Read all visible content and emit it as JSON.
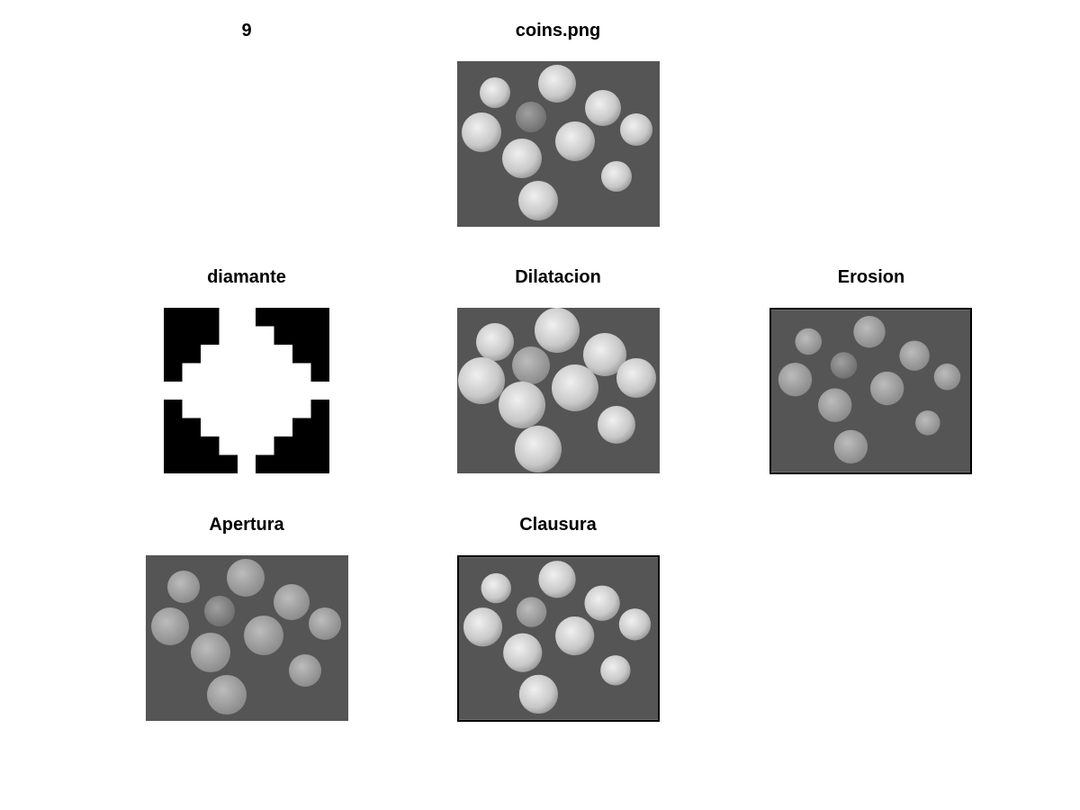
{
  "figure": {
    "number_label": "9",
    "titles": {
      "original": "coins.png",
      "structuring_element": "diamante",
      "dilation": "Dilatacion",
      "erosion": "Erosion",
      "opening": "Apertura",
      "closing": "Clausura"
    }
  },
  "colors": {
    "background_panel": "#5a5a5a",
    "coin_light": "#d8d8d8",
    "coin_dark": "#8c8c8c",
    "structuring_fg": "#ffffff",
    "structuring_bg": "#000000"
  }
}
